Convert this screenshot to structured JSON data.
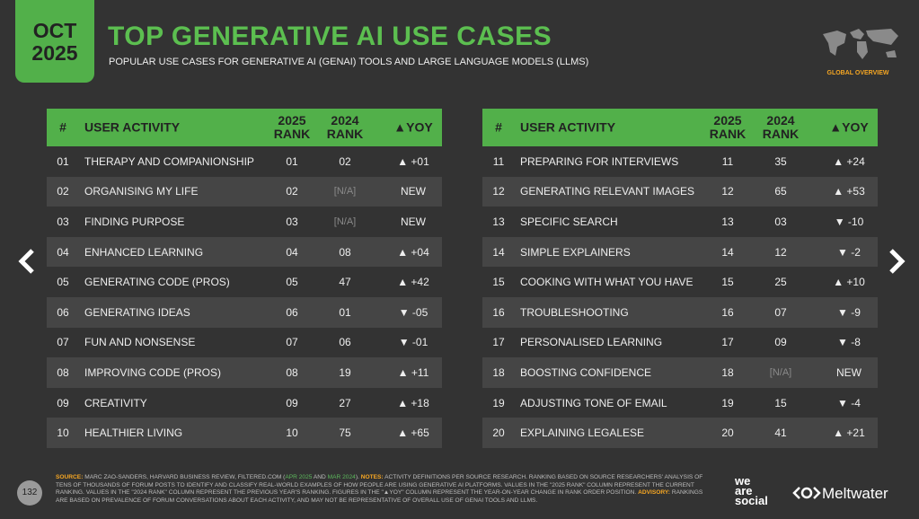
{
  "date": {
    "month": "OCT",
    "year": "2025"
  },
  "title": "TOP GENERATIVE AI USE CASES",
  "subtitle": "POPULAR USE CASES FOR GENERATIVE AI (GENAI) TOOLS AND LARGE LANGUAGE MODELS (LLMS)",
  "badge": "GLOBAL OVERVIEW",
  "tables": [
    {
      "columns": [
        "#",
        "USER ACTIVITY",
        "2025 RANK",
        "2024 RANK",
        "▲YOY"
      ],
      "rows": [
        [
          "01",
          "THERAPY AND COMPANIONSHIP",
          "01",
          "02",
          "▲ +01"
        ],
        [
          "02",
          "ORGANISING MY LIFE",
          "02",
          "[N/A]",
          "NEW"
        ],
        [
          "03",
          "FINDING PURPOSE",
          "03",
          "[N/A]",
          "NEW"
        ],
        [
          "04",
          "ENHANCED LEARNING",
          "04",
          "08",
          "▲ +04"
        ],
        [
          "05",
          "GENERATING CODE (PROS)",
          "05",
          "47",
          "▲ +42"
        ],
        [
          "06",
          "GENERATING IDEAS",
          "06",
          "01",
          "▼ -05"
        ],
        [
          "07",
          "FUN AND NONSENSE",
          "07",
          "06",
          "▼ -01"
        ],
        [
          "08",
          "IMPROVING CODE (PROS)",
          "08",
          "19",
          "▲ +11"
        ],
        [
          "09",
          "CREATIVITY",
          "09",
          "27",
          "▲ +18"
        ],
        [
          "10",
          "HEALTHIER LIVING",
          "10",
          "75",
          "▲ +65"
        ]
      ]
    },
    {
      "columns": [
        "#",
        "USER ACTIVITY",
        "2025 RANK",
        "2024 RANK",
        "▲YOY"
      ],
      "rows": [
        [
          "11",
          "PREPARING FOR INTERVIEWS",
          "11",
          "35",
          "▲ +24"
        ],
        [
          "12",
          "GENERATING RELEVANT IMAGES",
          "12",
          "65",
          "▲ +53"
        ],
        [
          "13",
          "SPECIFIC SEARCH",
          "13",
          "03",
          "▼ -10"
        ],
        [
          "14",
          "SIMPLE EXPLAINERS",
          "14",
          "12",
          "▼ -2"
        ],
        [
          "15",
          "COOKING WITH WHAT YOU HAVE",
          "15",
          "25",
          "▲ +10"
        ],
        [
          "16",
          "TROUBLESHOOTING",
          "16",
          "07",
          "▼ -9"
        ],
        [
          "17",
          "PERSONALISED LEARNING",
          "17",
          "09",
          "▼ -8"
        ],
        [
          "18",
          "BOOSTING CONFIDENCE",
          "18",
          "[N/A]",
          "NEW"
        ],
        [
          "19",
          "ADJUSTING TONE OF EMAIL",
          "19",
          "15",
          "▼ -4"
        ],
        [
          "20",
          "EXPLAINING LEGALESE",
          "20",
          "41",
          "▲ +21"
        ]
      ]
    }
  ],
  "footer": {
    "page": "132",
    "segments": [
      {
        "text": "SOURCE:",
        "color": "#f5a623"
      },
      {
        "text": " MARC ZAO-SANDERS, HARVARD BUSINESS REVIEW, FILTERED.COM (",
        "color": "#bdbdbd"
      },
      {
        "text": "APR 2025",
        "color": "#5cb85c"
      },
      {
        "text": " AND ",
        "color": "#bdbdbd"
      },
      {
        "text": "MAR 2024",
        "color": "#5cb85c"
      },
      {
        "text": "). ",
        "color": "#bdbdbd"
      },
      {
        "text": "NOTES:",
        "color": "#f5a623"
      },
      {
        "text": " ACTIVITY DEFINITIONS PER SOURCE RESEARCH. RANKING BASED ON SOURCE RESEARCHERS' ANALYSIS OF TENS OF THOUSANDS OF FORUM POSTS TO IDENTIFY AND CLASSIFY REAL-WORLD EXAMPLES OF HOW PEOPLE ARE USING GENERATIVE AI PLATFORMS. VALUES IN THE \"2025 RANK\" COLUMN REPRESENT THE CURRENT RANKING. VALUES IN THE \"2024 RANK\" COLUMN REPRESENT THE PREVIOUS YEAR'S RANKING. FIGURES IN THE \"▲YOY\" COLUMN REPRESENT THE YEAR-ON-YEAR CHANGE IN RANK ORDER POSITION. ",
        "color": "#bdbdbd"
      },
      {
        "text": "ADVISORY:",
        "color": "#f5a623"
      },
      {
        "text": " RANKINGS ARE BASED ON PREVALENCE OF FORUM CONVERSATIONS ABOUT EACH ACTIVITY, AND MAY NOT BE REPRESENTATIVE OF OVERALL USE OF GENAI TOOLS AND LLMS.",
        "color": "#bdbdbd"
      }
    ]
  },
  "logos": {
    "brand1": [
      "we",
      "are",
      "social"
    ],
    "brand2": "Meltwater"
  }
}
